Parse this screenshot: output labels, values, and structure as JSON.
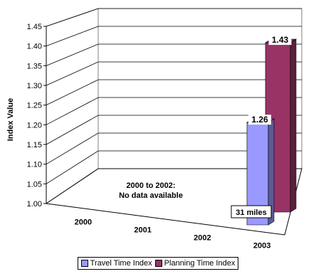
{
  "chart_data": {
    "type": "bar",
    "title": "",
    "ylabel": "Index Value",
    "xlabel": "",
    "ylim": [
      1.0,
      1.45
    ],
    "yticks": [
      "1.00",
      "1.05",
      "1.10",
      "1.15",
      "1.20",
      "1.25",
      "1.30",
      "1.35",
      "1.40",
      "1.45"
    ],
    "categories": [
      "2000",
      "2001",
      "2002",
      "2003"
    ],
    "series": [
      {
        "name": "Travel Time Index",
        "color": "#9999FF",
        "values": [
          null,
          null,
          null,
          1.26
        ],
        "labels": [
          "",
          "",
          "",
          "1.26"
        ]
      },
      {
        "name": "Planning Time Index",
        "color": "#993366",
        "values": [
          null,
          null,
          null,
          1.43
        ],
        "labels": [
          "",
          "",
          "",
          "1.43"
        ]
      }
    ],
    "annotations": {
      "no_data_line1": "2000 to 2002:",
      "no_data_line2": "No data available",
      "miles": "31 miles"
    },
    "grid": true,
    "legend_position": "bottom",
    "style": "3d"
  }
}
